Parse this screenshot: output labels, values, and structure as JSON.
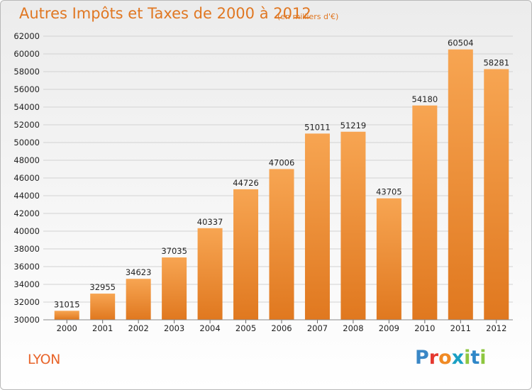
{
  "title": "Autres Impôts et Taxes de 2000 à 2012",
  "subtitle": "(en milliers d'€)",
  "city": "LYON",
  "logo": {
    "text": "Proxiti",
    "letter_colors": [
      "#3a87c6",
      "#e5382f",
      "#f08a24",
      "#1aa0c4",
      "#8fc641",
      "#2f87c8",
      "#8dc63f"
    ]
  },
  "colors": {
    "title": "#e07722",
    "bar_light": "#f7a552",
    "bar_dark": "#e0781f",
    "grid": "#d2d2d2",
    "axis_text": "#222222",
    "city": "#e8642a"
  },
  "chart_data": {
    "type": "bar",
    "title": "Autres Impôts et Taxes de 2000 à 2012",
    "xlabel": "",
    "ylabel": "",
    "categories": [
      "2000",
      "2001",
      "2002",
      "2003",
      "2004",
      "2005",
      "2006",
      "2007",
      "2008",
      "2009",
      "2010",
      "2011",
      "2012"
    ],
    "values": [
      31015,
      32955,
      34623,
      37035,
      40337,
      44726,
      47006,
      51011,
      51219,
      43705,
      54180,
      60504,
      58281
    ],
    "ylim": [
      30000,
      62000
    ],
    "yticks": [
      30000,
      32000,
      34000,
      36000,
      38000,
      40000,
      42000,
      44000,
      46000,
      48000,
      50000,
      52000,
      54000,
      56000,
      58000,
      60000,
      62000
    ],
    "grid": true,
    "legend": "none"
  }
}
